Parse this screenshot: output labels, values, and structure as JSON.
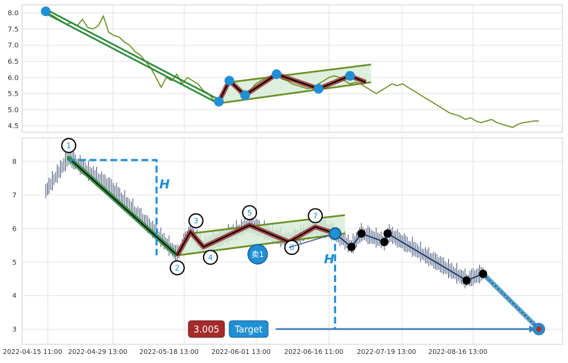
{
  "chart_data": [
    {
      "type": "line",
      "panel": "top",
      "yticks": [
        4.5,
        5.0,
        5.5,
        6.0,
        6.5,
        7.0,
        7.5,
        8.0
      ],
      "ylim": [
        4.3,
        8.25
      ],
      "grid": true,
      "series": [
        {
          "values": [
            8.05,
            7.95,
            7.85,
            7.75,
            7.65,
            7.7,
            7.6,
            7.8,
            7.55,
            7.5,
            7.6,
            7.9,
            7.4,
            7.3,
            7.25,
            7.1,
            7.0,
            6.8,
            6.7,
            6.5,
            6.3,
            6.0,
            5.7,
            6.0,
            5.9,
            6.1,
            5.8,
            6.0,
            5.9,
            5.8,
            5.6,
            5.5,
            5.3,
            5.25,
            5.6,
            5.9,
            5.8,
            5.5,
            5.45,
            5.6,
            5.8,
            5.9,
            6.0,
            6.05,
            6.1,
            5.95,
            5.9,
            5.8,
            5.75,
            5.7,
            5.65,
            5.7,
            5.8,
            5.9,
            6.0,
            6.05,
            6.0,
            5.9,
            5.8,
            5.85,
            5.8,
            5.7,
            5.6,
            5.5,
            5.6,
            5.7,
            5.8,
            5.75,
            5.8,
            5.7,
            5.6,
            5.5,
            5.4,
            5.3,
            5.2,
            5.1,
            5.0,
            4.9,
            4.85,
            4.8,
            4.7,
            4.75,
            4.65,
            4.6,
            4.65,
            4.7,
            4.6,
            4.55,
            4.5,
            4.45,
            4.55,
            4.6,
            4.62,
            4.65,
            4.65
          ]
        }
      ],
      "markers": [
        {
          "i": 0,
          "y": 8.05
        },
        {
          "i": 33,
          "y": 5.25
        },
        {
          "i": 35,
          "y": 5.9
        },
        {
          "i": 38,
          "y": 5.45
        },
        {
          "i": 44,
          "y": 6.1
        },
        {
          "i": 52,
          "y": 5.65
        },
        {
          "i": 58,
          "y": 6.05
        }
      ],
      "pattern": {
        "points": [
          [
            33,
            5.25
          ],
          [
            35,
            5.9
          ],
          [
            38,
            5.45
          ],
          [
            44,
            6.1
          ],
          [
            52,
            5.65
          ],
          [
            58,
            6.05
          ],
          [
            61,
            5.85
          ]
        ],
        "channel_upper": [
          [
            35,
            5.85
          ],
          [
            62,
            6.4
          ]
        ],
        "channel_lower": [
          [
            33,
            5.2
          ],
          [
            62,
            5.85
          ]
        ],
        "trend": [
          [
            0,
            8.05
          ],
          [
            33,
            5.25
          ]
        ]
      }
    },
    {
      "type": "candlestick",
      "panel": "bottom",
      "x_tick_labels": [
        "2022-04-15 11:00",
        "2022-04-29 13:00",
        "2022-05-18 13:00",
        "2022-06-01 13:00",
        "2022-06-16 11:00",
        "2022-07-19 13:00",
        "2022-08-16 13:00"
      ],
      "yticks": [
        3,
        4,
        5,
        6,
        7,
        8
      ],
      "ylim": [
        2.55,
        8.7
      ],
      "grid": true,
      "pattern_labels": [
        "1",
        "2",
        "3",
        "4",
        "5",
        "6",
        "7"
      ],
      "pattern_points": [
        {
          "label": "1",
          "i": 7,
          "y": 8.1
        },
        {
          "label": "2",
          "i": 40,
          "y": 5.2
        },
        {
          "label": "3",
          "i": 44,
          "y": 5.9
        },
        {
          "label": "4",
          "i": 48,
          "y": 5.45
        },
        {
          "label": "5",
          "i": 62,
          "y": 6.1
        },
        {
          "label": "6",
          "i": 74,
          "y": 5.6
        },
        {
          "label": "7",
          "i": 82,
          "y": 6.05
        }
      ],
      "channel_upper": [
        [
          44,
          5.85
        ],
        [
          91,
          6.4
        ]
      ],
      "channel_lower": [
        [
          40,
          5.2
        ],
        [
          91,
          5.85
        ]
      ],
      "trend": [
        [
          7,
          8.1
        ],
        [
          40,
          5.2
        ]
      ],
      "measure_h_label": "H",
      "sell_marker": {
        "label": "卖1",
        "i": 88,
        "y": 5.85
      },
      "projection": [
        [
          88,
          5.85
        ],
        [
          93,
          5.45
        ],
        [
          96,
          5.85
        ],
        [
          103,
          5.6
        ],
        [
          104,
          5.85
        ],
        [
          128,
          4.45
        ],
        [
          133,
          4.65
        ]
      ],
      "target_arrow": [
        [
          133,
          4.65
        ],
        [
          150,
          3.005
        ]
      ],
      "target_value": "3.005",
      "target_label": "Target",
      "colors": {
        "candle": "#2c3e63",
        "trend": "#2e8b3c",
        "pattern_line": "#000000",
        "pattern_glow": "#a03030",
        "channel": "#6b8e23",
        "fill": "#d4ecd4",
        "marker_blue": "#1f8fd6",
        "dash_blue": "#1f8fd6",
        "badge_red": "#a52a2a"
      }
    }
  ]
}
